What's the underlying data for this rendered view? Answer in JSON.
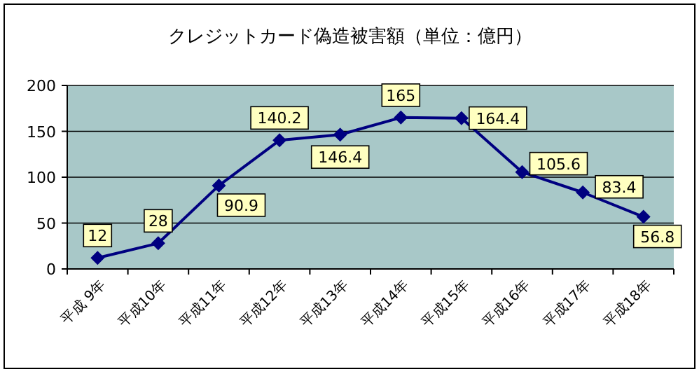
{
  "chart_data": {
    "type": "line",
    "title": "クレジットカード偽造被害額（単位：億円）",
    "categories": [
      "平成 9年",
      "平成10年",
      "平成11年",
      "平成12年",
      "平成13年",
      "平成14年",
      "平成15年",
      "平成16年",
      "平成17年",
      "平成18年"
    ],
    "series": [
      {
        "color": "#000080",
        "values": [
          12,
          28,
          90.9,
          140.2,
          146.4,
          165,
          164.4,
          105.6,
          83.4,
          56.8
        ]
      }
    ],
    "ylim": [
      0,
      200
    ],
    "yticks": [
      0,
      50,
      100,
      150,
      200
    ],
    "grid": "y",
    "marker": "diamond",
    "line_style": "solid",
    "data_labels": true
  }
}
